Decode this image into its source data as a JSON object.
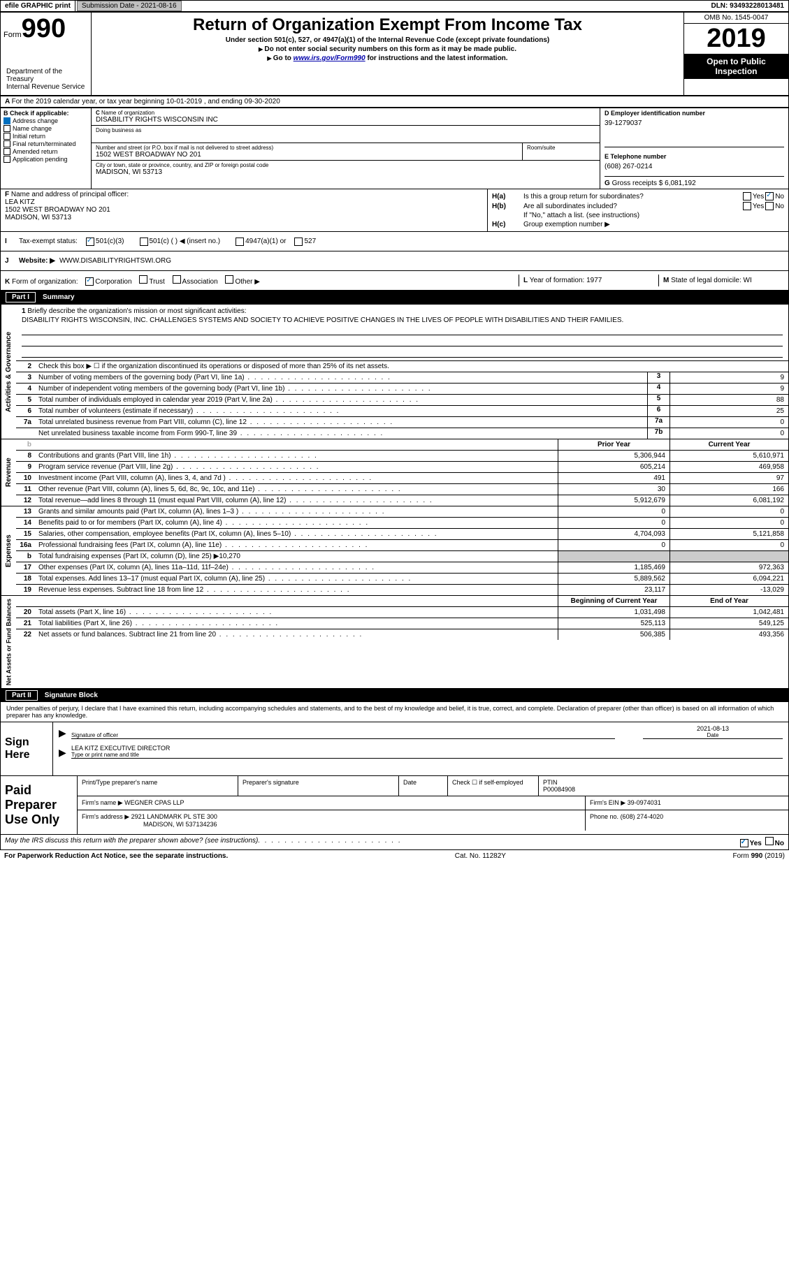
{
  "topbar": {
    "efile": "efile GRAPHIC print",
    "submission": "Submission Date - 2021-08-16",
    "dln": "DLN: 93493228013481"
  },
  "header": {
    "form_label": "Form",
    "form_num": "990",
    "dept": "Department of the Treasury\nInternal Revenue Service",
    "title": "Return of Organization Exempt From Income Tax",
    "sub1": "Under section 501(c), 527, or 4947(a)(1) of the Internal Revenue Code (except private foundations)",
    "sub2": "Do not enter social security numbers on this form as it may be made public.",
    "sub3_pre": "Go to ",
    "sub3_link": "www.irs.gov/Form990",
    "sub3_post": " for instructions and the latest information.",
    "omb": "OMB No. 1545-0047",
    "year": "2019",
    "open": "Open to Public Inspection"
  },
  "line_a": "For the 2019 calendar year, or tax year beginning 10-01-2019    , and ending 09-30-2020",
  "b_checks": {
    "header": "Check if applicable:",
    "items": [
      "Address change",
      "Name change",
      "Initial return",
      "Final return/terminated",
      "Amended return",
      "Application pending"
    ]
  },
  "c": {
    "name_label": "Name of organization",
    "name": "DISABILITY RIGHTS WISCONSIN INC",
    "dba_label": "Doing business as",
    "addr_label": "Number and street (or P.O. box if mail is not delivered to street address)",
    "room_label": "Room/suite",
    "addr": "1502 WEST BROADWAY NO 201",
    "city_label": "City or town, state or province, country, and ZIP or foreign postal code",
    "city": "MADISON, WI  53713"
  },
  "d": {
    "label": "Employer identification number",
    "value": "39-1279037"
  },
  "e": {
    "label": "Telephone number",
    "value": "(608) 267-0214"
  },
  "g": {
    "label": "Gross receipts $",
    "value": "6,081,192"
  },
  "f": {
    "label": "Name and address of principal officer:",
    "name": "LEA KITZ",
    "addr1": "1502 WEST BROADWAY NO 201",
    "addr2": "MADISON, WI  53713"
  },
  "h": {
    "a_label": "H(a)",
    "a_text": "Is this a group return for subordinates?",
    "b_label": "H(b)",
    "b_text": "Are all subordinates included?",
    "b_note": "If \"No,\" attach a list. (see instructions)",
    "c_label": "H(c)",
    "c_text": "Group exemption number ▶"
  },
  "i": {
    "label": "Tax-exempt status:",
    "opts": [
      "501(c)(3)",
      "501(c) (   ) ◀ (insert no.)",
      "4947(a)(1) or",
      "527"
    ]
  },
  "j": {
    "label": "Website: ▶",
    "value": "WWW.DISABILITYRIGHTSWI.ORG"
  },
  "k": {
    "label": "Form of organization:",
    "opts": [
      "Corporation",
      "Trust",
      "Association",
      "Other ▶"
    ]
  },
  "l": {
    "label": "Year of formation:",
    "value": "1977"
  },
  "m": {
    "label": "State of legal domicile:",
    "value": "WI"
  },
  "part1": {
    "bar": "Part I",
    "title": "Summary"
  },
  "activities": {
    "vert": "Activities & Governance",
    "q1": "Briefly describe the organization's mission or most significant activities:",
    "mission": "DISABILITY RIGHTS WISCONSIN, INC. CHALLENGES SYSTEMS AND SOCIETY TO ACHIEVE POSITIVE CHANGES IN THE LIVES OF PEOPLE WITH DISABILITIES AND THEIR FAMILIES.",
    "q2": "Check this box ▶ ☐  if the organization discontinued its operations or disposed of more than 25% of its net assets.",
    "rows": [
      {
        "n": "3",
        "d": "Number of voting members of the governing body (Part VI, line 1a)",
        "c": "3",
        "v": "9"
      },
      {
        "n": "4",
        "d": "Number of independent voting members of the governing body (Part VI, line 1b)",
        "c": "4",
        "v": "9"
      },
      {
        "n": "5",
        "d": "Total number of individuals employed in calendar year 2019 (Part V, line 2a)",
        "c": "5",
        "v": "88"
      },
      {
        "n": "6",
        "d": "Total number of volunteers (estimate if necessary)",
        "c": "6",
        "v": "25"
      },
      {
        "n": "7a",
        "d": "Total unrelated business revenue from Part VIII, column (C), line 12",
        "c": "7a",
        "v": "0"
      },
      {
        "n": "",
        "d": "Net unrelated business taxable income from Form 990-T, line 39",
        "c": "7b",
        "v": "0"
      }
    ]
  },
  "revenue": {
    "vert": "Revenue",
    "cols": {
      "prior": "Prior Year",
      "curr": "Current Year"
    },
    "rows": [
      {
        "n": "8",
        "d": "Contributions and grants (Part VIII, line 1h)",
        "p": "5,306,944",
        "c": "5,610,971"
      },
      {
        "n": "9",
        "d": "Program service revenue (Part VIII, line 2g)",
        "p": "605,214",
        "c": "469,958"
      },
      {
        "n": "10",
        "d": "Investment income (Part VIII, column (A), lines 3, 4, and 7d )",
        "p": "491",
        "c": "97"
      },
      {
        "n": "11",
        "d": "Other revenue (Part VIII, column (A), lines 5, 6d, 8c, 9c, 10c, and 11e)",
        "p": "30",
        "c": "166"
      },
      {
        "n": "12",
        "d": "Total revenue—add lines 8 through 11 (must equal Part VIII, column (A), line 12)",
        "p": "5,912,679",
        "c": "6,081,192"
      }
    ]
  },
  "expenses": {
    "vert": "Expenses",
    "rows": [
      {
        "n": "13",
        "d": "Grants and similar amounts paid (Part IX, column (A), lines 1–3 )",
        "p": "0",
        "c": "0"
      },
      {
        "n": "14",
        "d": "Benefits paid to or for members (Part IX, column (A), line 4)",
        "p": "0",
        "c": "0"
      },
      {
        "n": "15",
        "d": "Salaries, other compensation, employee benefits (Part IX, column (A), lines 5–10)",
        "p": "4,704,093",
        "c": "5,121,858"
      },
      {
        "n": "16a",
        "d": "Professional fundraising fees (Part IX, column (A), line 11e)",
        "p": "0",
        "c": "0"
      },
      {
        "n": "b",
        "d": "Total fundraising expenses (Part IX, column (D), line 25) ▶10,270",
        "p": "",
        "c": "",
        "shade": true
      },
      {
        "n": "17",
        "d": "Other expenses (Part IX, column (A), lines 11a–11d, 11f–24e)",
        "p": "1,185,469",
        "c": "972,363"
      },
      {
        "n": "18",
        "d": "Total expenses. Add lines 13–17 (must equal Part IX, column (A), line 25)",
        "p": "5,889,562",
        "c": "6,094,221"
      },
      {
        "n": "19",
        "d": "Revenue less expenses. Subtract line 18 from line 12",
        "p": "23,117",
        "c": "-13,029"
      }
    ]
  },
  "netassets": {
    "vert": "Net Assets or Fund Balances",
    "cols": {
      "prior": "Beginning of Current Year",
      "curr": "End of Year"
    },
    "rows": [
      {
        "n": "20",
        "d": "Total assets (Part X, line 16)",
        "p": "1,031,498",
        "c": "1,042,481"
      },
      {
        "n": "21",
        "d": "Total liabilities (Part X, line 26)",
        "p": "525,113",
        "c": "549,125"
      },
      {
        "n": "22",
        "d": "Net assets or fund balances. Subtract line 21 from line 20",
        "p": "506,385",
        "c": "493,356"
      }
    ]
  },
  "part2": {
    "bar": "Part II",
    "title": "Signature Block"
  },
  "sig": {
    "decl": "Under penalties of perjury, I declare that I have examined this return, including accompanying schedules and statements, and to the best of my knowledge and belief, it is true, correct, and complete. Declaration of preparer (other than officer) is based on all information of which preparer has any knowledge.",
    "sign_here": "Sign Here",
    "sig_officer": "Signature of officer",
    "date_label": "Date",
    "date": "2021-08-13",
    "name": "LEA KITZ  EXECUTIVE DIRECTOR",
    "name_label": "Type or print name and title"
  },
  "prep": {
    "label": "Paid Preparer Use Only",
    "h1": "Print/Type preparer's name",
    "h2": "Preparer's signature",
    "h3": "Date",
    "h4_pre": "Check ☐ if self-employed",
    "h5": "PTIN",
    "ptin": "P00084908",
    "firm_name_label": "Firm's name    ▶",
    "firm_name": "WEGNER CPAS LLP",
    "firm_ein_label": "Firm's EIN ▶",
    "firm_ein": "39-0974031",
    "firm_addr_label": "Firm's address ▶",
    "firm_addr1": "2921 LANDMARK PL STE 300",
    "firm_addr2": "MADISON, WI  537134236",
    "phone_label": "Phone no.",
    "phone": "(608) 274-4020"
  },
  "discuss": "May the IRS discuss this return with the preparer shown above? (see instructions)",
  "paperwork": "For Paperwork Reduction Act Notice, see the separate instructions.",
  "catno": "Cat. No. 11282Y",
  "form_footer": "Form 990 (2019)"
}
